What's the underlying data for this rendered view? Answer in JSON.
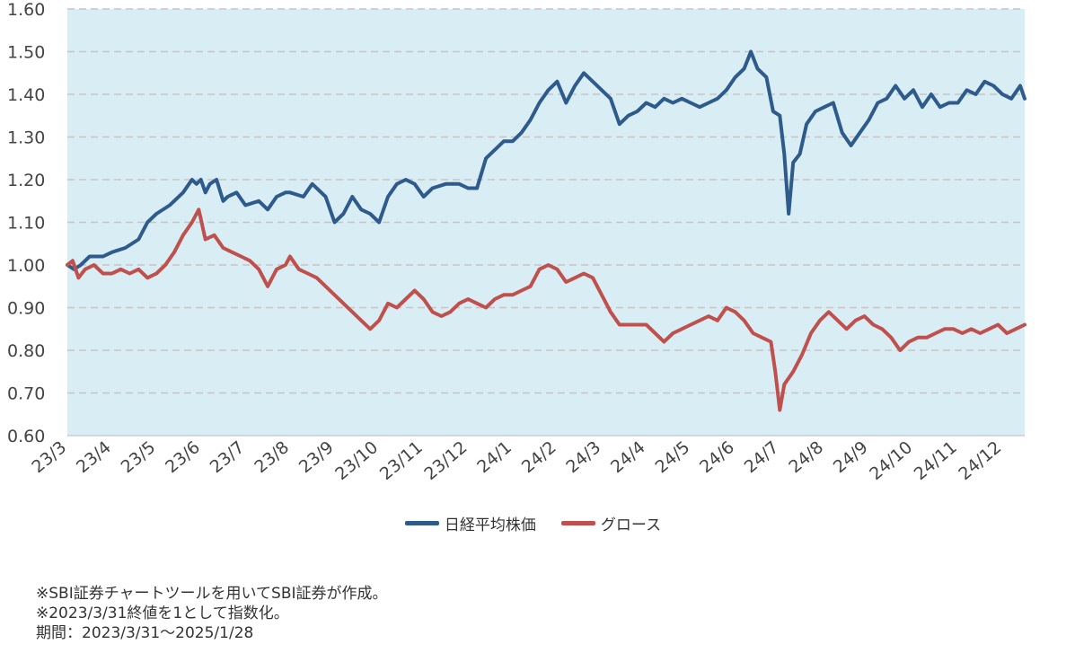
{
  "chart_data": {
    "type": "line",
    "title": "",
    "xlabel": "",
    "ylabel": "",
    "ylim": [
      0.6,
      1.6
    ],
    "yticks": [
      "0.60",
      "0.70",
      "0.80",
      "0.90",
      "1.00",
      "1.10",
      "1.20",
      "1.30",
      "1.40",
      "1.50",
      "1.60"
    ],
    "x_tick_labels": [
      "23/3",
      "23/4",
      "23/5",
      "23/6",
      "23/7",
      "23/8",
      "23/9",
      "23/10",
      "23/11",
      "23/12",
      "24/1",
      "24/2",
      "24/3",
      "24/4",
      "24/5",
      "24/6",
      "24/7",
      "24/8",
      "24/9",
      "24/10",
      "24/11",
      "24/12"
    ],
    "grid": "horizontal dashed",
    "legend_position": "bottom-center",
    "plot_background": "#d9eef4",
    "series": [
      {
        "name": "日経平均株価",
        "color": "#2e5a8c",
        "points": [
          [
            0.0,
            1.0
          ],
          [
            0.15,
            0.99
          ],
          [
            0.3,
            1.0
          ],
          [
            0.5,
            1.02
          ],
          [
            0.8,
            1.02
          ],
          [
            1.0,
            1.03
          ],
          [
            1.3,
            1.04
          ],
          [
            1.6,
            1.06
          ],
          [
            1.8,
            1.1
          ],
          [
            2.0,
            1.12
          ],
          [
            2.3,
            1.14
          ],
          [
            2.6,
            1.17
          ],
          [
            2.8,
            1.2
          ],
          [
            2.9,
            1.19
          ],
          [
            3.0,
            1.2
          ],
          [
            3.1,
            1.17
          ],
          [
            3.2,
            1.19
          ],
          [
            3.35,
            1.2
          ],
          [
            3.5,
            1.15
          ],
          [
            3.6,
            1.16
          ],
          [
            3.8,
            1.17
          ],
          [
            4.0,
            1.14
          ],
          [
            4.3,
            1.15
          ],
          [
            4.5,
            1.13
          ],
          [
            4.7,
            1.16
          ],
          [
            4.9,
            1.17
          ],
          [
            5.0,
            1.17
          ],
          [
            5.3,
            1.16
          ],
          [
            5.5,
            1.19
          ],
          [
            5.8,
            1.16
          ],
          [
            6.0,
            1.1
          ],
          [
            6.2,
            1.12
          ],
          [
            6.4,
            1.16
          ],
          [
            6.6,
            1.13
          ],
          [
            6.8,
            1.12
          ],
          [
            7.0,
            1.1
          ],
          [
            7.2,
            1.16
          ],
          [
            7.4,
            1.19
          ],
          [
            7.6,
            1.2
          ],
          [
            7.8,
            1.19
          ],
          [
            8.0,
            1.16
          ],
          [
            8.2,
            1.18
          ],
          [
            8.5,
            1.19
          ],
          [
            8.8,
            1.19
          ],
          [
            9.0,
            1.18
          ],
          [
            9.2,
            1.18
          ],
          [
            9.4,
            1.25
          ],
          [
            9.6,
            1.27
          ],
          [
            9.8,
            1.29
          ],
          [
            10.0,
            1.29
          ],
          [
            10.2,
            1.31
          ],
          [
            10.4,
            1.34
          ],
          [
            10.6,
            1.38
          ],
          [
            10.8,
            1.41
          ],
          [
            11.0,
            1.43
          ],
          [
            11.2,
            1.38
          ],
          [
            11.4,
            1.42
          ],
          [
            11.6,
            1.45
          ],
          [
            11.8,
            1.43
          ],
          [
            12.0,
            1.41
          ],
          [
            12.2,
            1.39
          ],
          [
            12.4,
            1.33
          ],
          [
            12.6,
            1.35
          ],
          [
            12.8,
            1.36
          ],
          [
            13.0,
            1.38
          ],
          [
            13.2,
            1.37
          ],
          [
            13.4,
            1.39
          ],
          [
            13.6,
            1.38
          ],
          [
            13.8,
            1.39
          ],
          [
            14.0,
            1.38
          ],
          [
            14.2,
            1.37
          ],
          [
            14.4,
            1.38
          ],
          [
            14.6,
            1.39
          ],
          [
            14.8,
            1.41
          ],
          [
            15.0,
            1.44
          ],
          [
            15.2,
            1.46
          ],
          [
            15.35,
            1.5
          ],
          [
            15.5,
            1.46
          ],
          [
            15.7,
            1.44
          ],
          [
            15.85,
            1.36
          ],
          [
            16.0,
            1.35
          ],
          [
            16.1,
            1.26
          ],
          [
            16.2,
            1.12
          ],
          [
            16.3,
            1.24
          ],
          [
            16.45,
            1.26
          ],
          [
            16.6,
            1.33
          ],
          [
            16.8,
            1.36
          ],
          [
            17.0,
            1.37
          ],
          [
            17.2,
            1.38
          ],
          [
            17.4,
            1.31
          ],
          [
            17.6,
            1.28
          ],
          [
            17.8,
            1.31
          ],
          [
            18.0,
            1.34
          ],
          [
            18.2,
            1.38
          ],
          [
            18.4,
            1.39
          ],
          [
            18.6,
            1.42
          ],
          [
            18.8,
            1.39
          ],
          [
            19.0,
            1.41
          ],
          [
            19.2,
            1.37
          ],
          [
            19.4,
            1.4
          ],
          [
            19.6,
            1.37
          ],
          [
            19.8,
            1.38
          ],
          [
            20.0,
            1.38
          ],
          [
            20.2,
            1.41
          ],
          [
            20.4,
            1.4
          ],
          [
            20.6,
            1.43
          ],
          [
            20.8,
            1.42
          ],
          [
            21.0,
            1.4
          ],
          [
            21.2,
            1.39
          ],
          [
            21.4,
            1.42
          ],
          [
            21.5,
            1.39
          ]
        ]
      },
      {
        "name": "グロース",
        "color": "#c0504d",
        "points": [
          [
            0.0,
            1.0
          ],
          [
            0.12,
            1.01
          ],
          [
            0.25,
            0.97
          ],
          [
            0.4,
            0.99
          ],
          [
            0.6,
            1.0
          ],
          [
            0.8,
            0.98
          ],
          [
            1.0,
            0.98
          ],
          [
            1.2,
            0.99
          ],
          [
            1.4,
            0.98
          ],
          [
            1.6,
            0.99
          ],
          [
            1.8,
            0.97
          ],
          [
            2.0,
            0.98
          ],
          [
            2.2,
            1.0
          ],
          [
            2.4,
            1.03
          ],
          [
            2.6,
            1.07
          ],
          [
            2.8,
            1.1
          ],
          [
            2.95,
            1.13
          ],
          [
            3.1,
            1.06
          ],
          [
            3.3,
            1.07
          ],
          [
            3.5,
            1.04
          ],
          [
            3.7,
            1.03
          ],
          [
            3.9,
            1.02
          ],
          [
            4.1,
            1.01
          ],
          [
            4.3,
            0.99
          ],
          [
            4.5,
            0.95
          ],
          [
            4.7,
            0.99
          ],
          [
            4.9,
            1.0
          ],
          [
            5.0,
            1.02
          ],
          [
            5.2,
            0.99
          ],
          [
            5.4,
            0.98
          ],
          [
            5.6,
            0.97
          ],
          [
            5.8,
            0.95
          ],
          [
            6.0,
            0.93
          ],
          [
            6.2,
            0.91
          ],
          [
            6.4,
            0.89
          ],
          [
            6.6,
            0.87
          ],
          [
            6.8,
            0.85
          ],
          [
            7.0,
            0.87
          ],
          [
            7.2,
            0.91
          ],
          [
            7.4,
            0.9
          ],
          [
            7.6,
            0.92
          ],
          [
            7.8,
            0.94
          ],
          [
            8.0,
            0.92
          ],
          [
            8.2,
            0.89
          ],
          [
            8.4,
            0.88
          ],
          [
            8.6,
            0.89
          ],
          [
            8.8,
            0.91
          ],
          [
            9.0,
            0.92
          ],
          [
            9.2,
            0.91
          ],
          [
            9.4,
            0.9
          ],
          [
            9.6,
            0.92
          ],
          [
            9.8,
            0.93
          ],
          [
            10.0,
            0.93
          ],
          [
            10.2,
            0.94
          ],
          [
            10.4,
            0.95
          ],
          [
            10.6,
            0.99
          ],
          [
            10.8,
            1.0
          ],
          [
            11.0,
            0.99
          ],
          [
            11.2,
            0.96
          ],
          [
            11.4,
            0.97
          ],
          [
            11.6,
            0.98
          ],
          [
            11.8,
            0.97
          ],
          [
            12.0,
            0.93
          ],
          [
            12.2,
            0.89
          ],
          [
            12.4,
            0.86
          ],
          [
            12.6,
            0.86
          ],
          [
            12.8,
            0.86
          ],
          [
            13.0,
            0.86
          ],
          [
            13.2,
            0.84
          ],
          [
            13.4,
            0.82
          ],
          [
            13.6,
            0.84
          ],
          [
            13.8,
            0.85
          ],
          [
            14.0,
            0.86
          ],
          [
            14.2,
            0.87
          ],
          [
            14.4,
            0.88
          ],
          [
            14.6,
            0.87
          ],
          [
            14.8,
            0.9
          ],
          [
            15.0,
            0.89
          ],
          [
            15.2,
            0.87
          ],
          [
            15.4,
            0.84
          ],
          [
            15.6,
            0.83
          ],
          [
            15.8,
            0.82
          ],
          [
            15.9,
            0.75
          ],
          [
            16.0,
            0.66
          ],
          [
            16.1,
            0.72
          ],
          [
            16.3,
            0.75
          ],
          [
            16.5,
            0.79
          ],
          [
            16.7,
            0.84
          ],
          [
            16.9,
            0.87
          ],
          [
            17.1,
            0.89
          ],
          [
            17.3,
            0.87
          ],
          [
            17.5,
            0.85
          ],
          [
            17.7,
            0.87
          ],
          [
            17.9,
            0.88
          ],
          [
            18.1,
            0.86
          ],
          [
            18.3,
            0.85
          ],
          [
            18.5,
            0.83
          ],
          [
            18.7,
            0.8
          ],
          [
            18.9,
            0.82
          ],
          [
            19.1,
            0.83
          ],
          [
            19.3,
            0.83
          ],
          [
            19.5,
            0.84
          ],
          [
            19.7,
            0.85
          ],
          [
            19.9,
            0.85
          ],
          [
            20.1,
            0.84
          ],
          [
            20.3,
            0.85
          ],
          [
            20.5,
            0.84
          ],
          [
            20.7,
            0.85
          ],
          [
            20.9,
            0.86
          ],
          [
            21.1,
            0.84
          ],
          [
            21.3,
            0.85
          ],
          [
            21.5,
            0.86
          ]
        ]
      }
    ]
  },
  "notes": [
    "※SBI証券チャートツールを用いてSBI証券が作成。",
    "※2023/3/31終値を1として指数化。",
    "期間：2023/3/31～2025/1/28"
  ]
}
